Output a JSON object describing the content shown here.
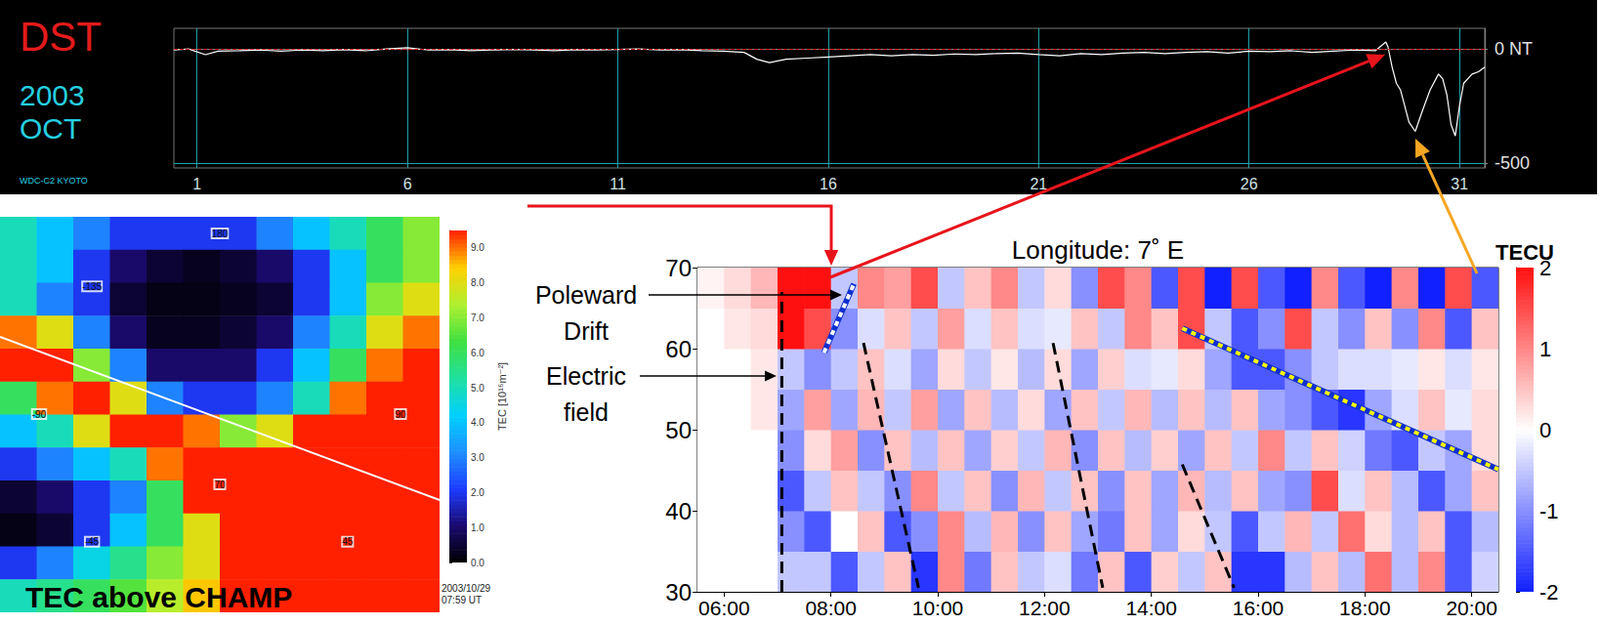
{
  "chart_data": [
    {
      "type": "line",
      "title": "DST",
      "year": "2003",
      "month": "OCT",
      "source": "WDC-C2 KYOTO",
      "x": [
        0.45,
        0.8,
        1.2,
        1.5,
        2,
        2.5,
        3,
        3.5,
        4,
        4.5,
        5,
        5.5,
        6,
        6.5,
        7,
        7.5,
        8,
        8.5,
        9,
        9.5,
        10,
        10.5,
        11,
        11.5,
        12,
        12.5,
        13,
        13.5,
        14,
        14.3,
        14.6,
        15,
        15.5,
        16,
        16.5,
        17,
        17.5,
        18,
        18.5,
        19,
        19.5,
        20,
        20.5,
        21,
        21.5,
        22,
        22.5,
        23,
        23.5,
        24,
        24.5,
        25,
        25.5,
        26,
        26.5,
        27,
        27.5,
        28,
        28.5,
        29,
        29.25,
        29.3,
        29.4,
        29.5,
        29.6,
        29.7,
        29.8,
        29.95,
        30.1,
        30.3,
        30.5,
        30.6,
        30.7,
        30.8,
        30.9,
        31,
        31.1,
        31.3,
        31.45,
        31.6
      ],
      "values": [
        -5,
        0,
        -25,
        -10,
        -8,
        -5,
        -10,
        -5,
        -8,
        -3,
        -8,
        0,
        5,
        -5,
        -3,
        -8,
        -5,
        -2,
        -5,
        -8,
        -3,
        -5,
        -2,
        0,
        -5,
        -3,
        -8,
        -10,
        -15,
        -45,
        -60,
        -45,
        -40,
        -35,
        -30,
        -25,
        -30,
        -25,
        -28,
        -22,
        -25,
        -20,
        -18,
        -25,
        -30,
        -20,
        -25,
        -18,
        -15,
        -20,
        -15,
        -12,
        -18,
        -10,
        -12,
        -8,
        -15,
        -10,
        -5,
        -8,
        30,
        10,
        -80,
        -150,
        -180,
        -250,
        -320,
        -360,
        -280,
        -180,
        -110,
        -130,
        -200,
        -330,
        -380,
        -250,
        -150,
        -110,
        -100,
        -80
      ],
      "color": "#ffffff",
      "xlim": [
        0.45,
        31.6
      ],
      "xticks": [
        1,
        6,
        11,
        16,
        21,
        26,
        31
      ],
      "ylim": [
        -520,
        90
      ],
      "yticks": [
        {
          "value": 0,
          "label": "0 NT"
        },
        -500
      ],
      "grid": true,
      "reference_lines": [
        {
          "value": 0,
          "color": "#d02828",
          "line_style": "dashed"
        }
      ]
    },
    {
      "type": "heatmap",
      "title": "TEC above CHAMP",
      "timestamp": "2003/10/29 07:59 UT",
      "colorbar_label": "TEC [10¹⁶m⁻²]",
      "cells": [
        [
          5,
          4,
          3,
          2,
          2,
          2,
          2,
          3,
          4,
          5,
          6,
          7
        ],
        [
          5,
          4,
          2,
          1,
          0.5,
          0.3,
          0.5,
          1,
          2,
          4,
          6,
          7
        ],
        [
          5,
          3,
          2,
          0.5,
          0.2,
          0.2,
          0.3,
          0.5,
          2,
          4,
          7,
          8
        ],
        [
          9,
          8,
          3,
          1,
          0.3,
          0.3,
          0.5,
          1,
          3,
          5,
          8,
          9
        ],
        [
          9.5,
          9.5,
          7,
          3,
          1,
          1,
          1,
          2,
          4,
          6,
          9,
          9.5
        ],
        [
          6,
          9,
          9.5,
          8,
          3,
          2,
          2,
          3,
          5,
          9,
          9.5,
          9.5
        ],
        [
          4,
          5,
          8,
          9.5,
          9.5,
          9,
          7,
          8,
          9.5,
          9.5,
          9.5,
          9.5
        ],
        [
          2,
          3,
          4,
          5,
          9,
          9.5,
          9.5,
          9.5,
          9.5,
          9.5,
          9.5,
          9.5
        ],
        [
          0.5,
          1,
          2,
          3,
          6,
          9.5,
          9.5,
          9.5,
          9.5,
          9.5,
          9.5,
          9.5
        ],
        [
          0.2,
          0.5,
          2,
          4,
          6,
          8,
          9.5,
          9.5,
          9.5,
          9.5,
          9.5,
          9.5
        ],
        [
          2,
          3,
          4.5,
          5.5,
          7,
          8,
          9.5,
          9.5,
          9.5,
          9.5,
          9.5,
          9.5
        ],
        [
          5,
          5.5,
          6,
          6.5,
          7.5,
          8.5,
          9.5,
          9.5,
          9.5,
          9.5,
          9.5,
          9.5
        ]
      ],
      "colorbar_range": [
        0,
        9.5
      ],
      "colorbar_ticks": [
        {
          "value": 0,
          "label": "0.0"
        },
        {
          "value": 1,
          "label": "1.0"
        },
        {
          "value": 2,
          "label": "2.0"
        },
        {
          "value": 3,
          "label": "3.0"
        },
        {
          "value": 4,
          "label": "4.0"
        },
        {
          "value": 5,
          "label": "5.0"
        },
        {
          "value": 6,
          "label": "6.0"
        },
        {
          "value": 7,
          "label": "7.0"
        },
        {
          "value": 8,
          "label": "8.0"
        },
        {
          "value": 9,
          "label": "9.0"
        }
      ],
      "longitude_labels": [
        180,
        -135,
        -90,
        -45,
        45,
        90
      ],
      "latitude_labels": [
        70
      ],
      "tick_labels": false
    },
    {
      "type": "heatmap",
      "title": "Longitude: 7˚ E",
      "colorbar_title": "TECU",
      "x_bins": [
        5.5,
        6,
        6.5,
        7,
        7.5,
        8,
        8.5,
        9,
        9.5,
        10,
        10.5,
        11,
        11.5,
        12,
        12.5,
        13,
        13.5,
        14,
        14.5,
        15,
        15.5,
        16,
        16.5,
        17,
        17.5,
        18,
        18.5,
        19,
        19.5,
        20,
        20.5
      ],
      "y_bins": [
        30,
        35,
        40,
        45,
        50,
        55,
        60,
        65,
        70
      ],
      "cells": [
        [
          0,
          0,
          0,
          -0.5,
          -0.5,
          -1.5,
          -0.5,
          0.5,
          -1.8,
          1,
          -1.2,
          0.5,
          -0.5,
          -0.3,
          -1.2,
          0.5,
          -1.5,
          0.4,
          -0.5,
          0.5,
          -1.8,
          -1.8,
          -0.6,
          0.5,
          -0.6,
          1.2,
          -0.6,
          1,
          -1.5,
          -0.4
        ],
        [
          0,
          0,
          0,
          -1,
          -1.5,
          0,
          0.5,
          -1.5,
          -1,
          1,
          -0.6,
          0.6,
          -1,
          0.5,
          -0.8,
          -1.2,
          0.5,
          -0.8,
          0.3,
          -0.5,
          -1.5,
          -0.5,
          0.6,
          -0.5,
          1.2,
          0.3,
          -0.6,
          0.5,
          -1.5,
          -0.6
        ],
        [
          0,
          0,
          0,
          -1.5,
          -0.5,
          0.5,
          -0.5,
          -1,
          1,
          -0.5,
          0.5,
          -1,
          0.6,
          -0.5,
          0.5,
          -1,
          0.5,
          -0.8,
          0.6,
          -0.6,
          0.5,
          -0.8,
          -1,
          1.5,
          -0.3,
          0.5,
          -0.6,
          -1.5,
          -0.8,
          0.5
        ],
        [
          0,
          0,
          0,
          -1,
          0.3,
          0.8,
          -1,
          0.5,
          -0.6,
          0.5,
          -0.8,
          0.4,
          -0.5,
          0.6,
          -1,
          0.5,
          -0.6,
          0.4,
          -0.8,
          0.5,
          -0.5,
          1,
          -0.5,
          0.5,
          -0.4,
          -1.2,
          -1.5,
          -0.5,
          -0.8,
          0.3
        ],
        [
          0,
          0,
          0.2,
          -0.8,
          0.8,
          -0.8,
          0.6,
          -0.5,
          0.8,
          -0.8,
          0.5,
          -0.6,
          0.3,
          -0.8,
          0.5,
          -0.5,
          0.6,
          -0.6,
          0.5,
          -0.6,
          0.5,
          -0.8,
          -1,
          -1.5,
          -1.8,
          -0.8,
          -0.3,
          0.5,
          -0.2,
          0.3
        ],
        [
          0,
          0,
          0.2,
          -0.5,
          -1,
          -0.5,
          0.5,
          -0.3,
          -0.8,
          0.3,
          -0.5,
          0.2,
          -0.6,
          0.3,
          -0.8,
          0.4,
          -0.3,
          -0.2,
          0.3,
          -0.8,
          -1.5,
          -1.5,
          -1,
          -0.5,
          -0.3,
          -0.3,
          -0.2,
          0.2,
          -0.3,
          0.2
        ],
        [
          0,
          0.2,
          0.3,
          2,
          1.5,
          -1,
          -0.3,
          0.5,
          -0.5,
          0.8,
          -0.3,
          0.5,
          -0.3,
          -0.2,
          0.5,
          -0.5,
          1,
          0.5,
          1.5,
          -0.5,
          -1.5,
          -1,
          1.5,
          -0.5,
          -1,
          0.5,
          -1,
          1,
          -1.5,
          0.5
        ],
        [
          0.1,
          0.3,
          0.6,
          2,
          2,
          -0.5,
          1,
          0.8,
          1.5,
          -0.5,
          0.5,
          1,
          -0.5,
          0.3,
          -1,
          1.5,
          1,
          -1.5,
          1.5,
          -2,
          1.5,
          -1.5,
          -2,
          1,
          -1.5,
          -2,
          1,
          -2,
          1.5,
          -1.5
        ]
      ],
      "colorbar_range": [
        -2,
        2
      ],
      "colorbar_ticks": [
        -2,
        -1,
        0,
        1,
        2
      ],
      "xlim": [
        5.5,
        20.5
      ],
      "xticks": [
        {
          "value": 6,
          "label": "06:00"
        },
        {
          "value": 8,
          "label": "08:00"
        },
        {
          "value": 10,
          "label": "10:00"
        },
        {
          "value": 12,
          "label": "12:00"
        },
        {
          "value": 14,
          "label": "14:00"
        },
        {
          "value": 16,
          "label": "16:00"
        },
        {
          "value": 18,
          "label": "18:00"
        },
        {
          "value": 20,
          "label": "20:00"
        }
      ],
      "ylim": [
        30,
        70
      ],
      "yticks": [
        30,
        40,
        50,
        60,
        70
      ],
      "grid": false,
      "labels": [
        "Poleward Drift",
        "Electric field"
      ],
      "guide_lines": [
        {
          "points": [
            [
              7.08,
              30
            ],
            [
              7.08,
              67
            ]
          ],
          "color": "#000000",
          "line_style": "dashed"
        },
        {
          "points": [
            [
              8.61,
              60.7
            ],
            [
              9.64,
              30.5
            ]
          ],
          "color": "#000000",
          "line_style": "dashed"
        },
        {
          "points": [
            [
              12.16,
              60.7
            ],
            [
              13.09,
              30.5
            ]
          ],
          "color": "#000000",
          "line_style": "dashed"
        },
        {
          "points": [
            [
              14.58,
              45.7
            ],
            [
              15.55,
              30.5
            ]
          ],
          "color": "#000000",
          "line_style": "dashed"
        },
        {
          "points": [
            [
              7.87,
              59.5
            ],
            [
              8.43,
              68
            ]
          ],
          "color": "#ffffff",
          "line_style": "dotted"
        },
        {
          "points": [
            [
              14.58,
              62.5
            ],
            [
              20.5,
              45.1
            ]
          ],
          "color": "#ffff00",
          "line_style": "dotted"
        }
      ]
    }
  ]
}
